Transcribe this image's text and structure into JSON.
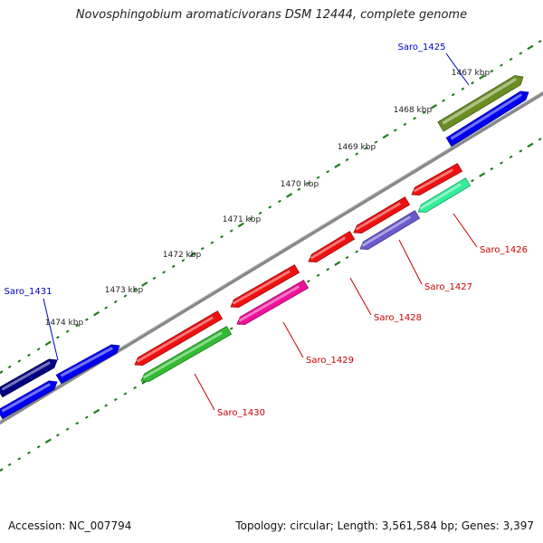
{
  "title": "Novosphingobium aromaticivorans DSM 12444, complete genome",
  "footer": {
    "accession_label": "Accession: NC_007794",
    "summary": "Topology: circular; Length: 3,561,584 bp; Genes: 3,397"
  },
  "colors": {
    "backbone": "#888888",
    "tick": "#1d7a1d",
    "forward_label": "#0000cc",
    "reverse_label": "#cc0000"
  },
  "ticks": [
    {
      "label": "1467 kbp"
    },
    {
      "label": "1468 kbp"
    },
    {
      "label": "1469 kbp"
    },
    {
      "label": "1470 kbp"
    },
    {
      "label": "1471 kbp"
    },
    {
      "label": "1472 kbp"
    },
    {
      "label": "1473 kbp"
    },
    {
      "label": "1474 kbp"
    }
  ],
  "genes": [
    {
      "id": "Saro_1425",
      "color": "#6b8e23",
      "strand": "forward"
    },
    {
      "id": "Saro_1426",
      "color": "#33ee99",
      "strand": "reverse"
    },
    {
      "id": "Saro_1427",
      "color": "#6a5acd",
      "strand": "reverse"
    },
    {
      "id": "Saro_1428",
      "color": "#ee1111",
      "strand": "reverse"
    },
    {
      "id": "Saro_1429",
      "color": "#ee1199",
      "strand": "reverse"
    },
    {
      "id": "Saro_1430",
      "color": "#33bb33",
      "strand": "reverse"
    },
    {
      "id": "Saro_1431",
      "color": "#0000ee",
      "strand": "forward"
    }
  ]
}
